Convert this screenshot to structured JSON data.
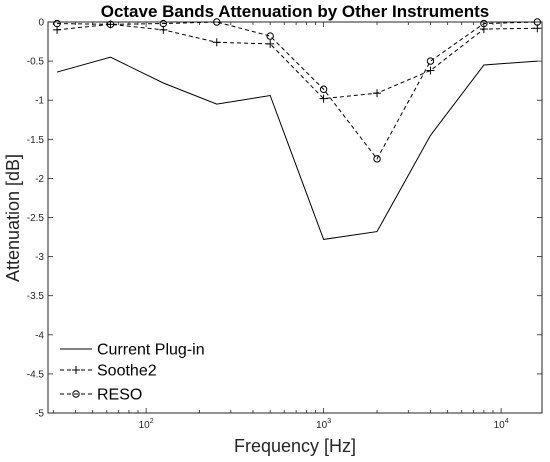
{
  "chart_data": {
    "type": "line",
    "title": "Octave Bands Attenuation by Other Instruments",
    "xlabel": "Frequency [Hz]",
    "ylabel": "Attenuation [dB]",
    "x_scale": "log",
    "xlim": [
      28,
      17000
    ],
    "ylim": [
      -5,
      0
    ],
    "x_ticks": [
      {
        "value": 100,
        "base": "10",
        "exp": "2"
      },
      {
        "value": 1000,
        "base": "10",
        "exp": "3"
      },
      {
        "value": 10000,
        "base": "10",
        "exp": "4"
      }
    ],
    "y_ticks": [
      "0",
      "-0.5",
      "-1",
      "-1.5",
      "-2",
      "-2.5",
      "-3",
      "-3.5",
      "-4",
      "-4.5",
      "-5"
    ],
    "grid": false,
    "legend_position": "bottom-left",
    "x": [
      31.5,
      63,
      125,
      250,
      500,
      1000,
      2000,
      4000,
      8000,
      16000
    ],
    "series": [
      {
        "name": "Current Plug-in",
        "style": "solid",
        "marker": "none",
        "values": [
          -0.64,
          -0.45,
          -0.78,
          -1.05,
          -0.94,
          -2.78,
          -2.68,
          -1.45,
          -0.55,
          -0.5
        ]
      },
      {
        "name": "Soothe2",
        "style": "dashed",
        "marker": "plus",
        "values": [
          -0.1,
          -0.03,
          -0.1,
          -0.26,
          -0.28,
          -0.98,
          -0.91,
          -0.62,
          -0.09,
          -0.08
        ]
      },
      {
        "name": "RESO",
        "style": "dashed",
        "marker": "circle",
        "values": [
          -0.02,
          -0.03,
          -0.02,
          0.0,
          -0.18,
          -0.86,
          -1.75,
          -0.5,
          -0.02,
          0.0
        ]
      }
    ],
    "colors": {
      "line": "#000000",
      "axis": "#262626"
    }
  }
}
